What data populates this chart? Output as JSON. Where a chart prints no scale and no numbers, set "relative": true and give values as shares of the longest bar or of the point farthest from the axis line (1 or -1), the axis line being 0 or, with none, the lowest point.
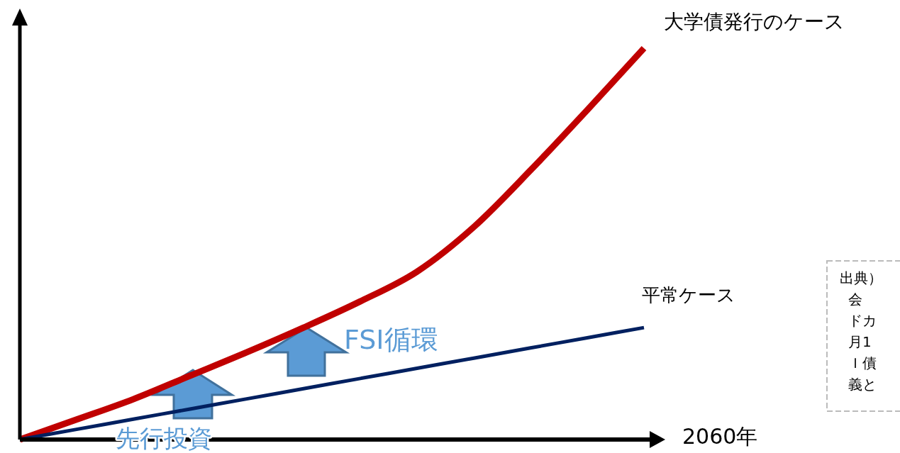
{
  "chart_data": {
    "type": "line",
    "relative": true,
    "xlabel": "2060年",
    "categories": [
      null,
      null,
      null,
      null,
      null,
      null,
      null,
      null,
      null,
      null,
      null,
      null
    ],
    "series": [
      {
        "name": "大学債発行のケース",
        "color": "#c00000",
        "values": [
          0,
          0.051,
          0.103,
          0.163,
          0.223,
          0.286,
          0.353,
          0.429,
          0.543,
          0.688,
          0.842,
          1
        ]
      },
      {
        "name": "平常ケース",
        "color": "#002060",
        "values": [
          0,
          0.026,
          0.052,
          0.078,
          0.104,
          0.13,
          0.156,
          0.182,
          0.208,
          0.234,
          0.26,
          0.286
        ]
      }
    ],
    "annotations": [
      "先行投資",
      "FSI循環",
      "出典）",
      "会",
      "ドカ",
      "月1",
      "Ｉ債",
      "義と"
    ]
  }
}
